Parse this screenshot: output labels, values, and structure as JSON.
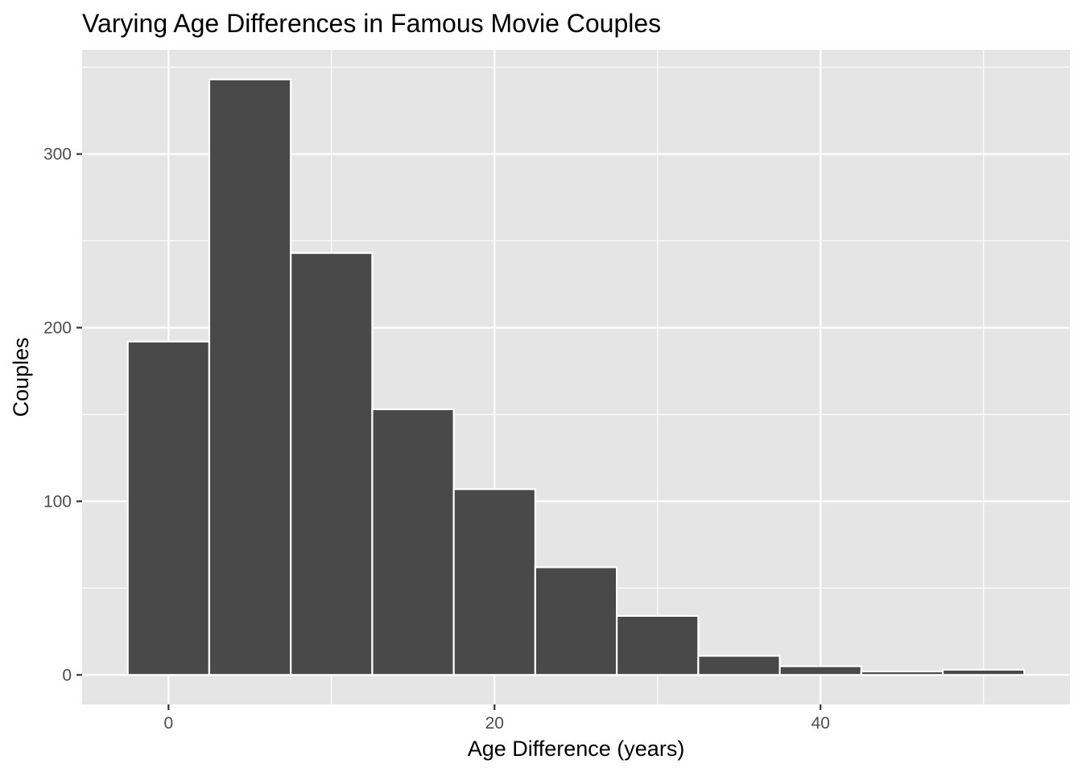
{
  "chart_data": {
    "type": "bar",
    "title": "Varying Age Differences in Famous Movie Couples",
    "xlabel": "Age Difference (years)",
    "ylabel": "Couples",
    "bin_width": 5,
    "bins": [
      {
        "x_start": -2.5,
        "x_end": 2.5,
        "count": 192
      },
      {
        "x_start": 2.5,
        "x_end": 7.5,
        "count": 343
      },
      {
        "x_start": 7.5,
        "x_end": 12.5,
        "count": 243
      },
      {
        "x_start": 12.5,
        "x_end": 17.5,
        "count": 153
      },
      {
        "x_start": 17.5,
        "x_end": 22.5,
        "count": 107
      },
      {
        "x_start": 22.5,
        "x_end": 27.5,
        "count": 62
      },
      {
        "x_start": 27.5,
        "x_end": 32.5,
        "count": 34
      },
      {
        "x_start": 32.5,
        "x_end": 37.5,
        "count": 11
      },
      {
        "x_start": 37.5,
        "x_end": 42.5,
        "count": 5
      },
      {
        "x_start": 42.5,
        "x_end": 47.5,
        "count": 2
      },
      {
        "x_start": 47.5,
        "x_end": 52.5,
        "count": 3
      }
    ],
    "xlim": [
      -5.3,
      55.3
    ],
    "ylim": [
      -17,
      360
    ],
    "x_ticks": [
      0,
      20,
      40
    ],
    "x_tick_labels": [
      "0",
      "20",
      "40"
    ],
    "x_minor_grid": [
      10,
      30,
      50
    ],
    "y_ticks": [
      0,
      100,
      200,
      300
    ],
    "y_tick_labels": [
      "0",
      "100",
      "200",
      "300"
    ],
    "y_minor_grid": [
      50,
      150,
      250,
      350
    ],
    "grid": true,
    "colors": {
      "panel_background": "#e5e5e5",
      "grid_line": "#ffffff",
      "bar_fill": "#494949",
      "bar_outline": "#ffffff",
      "tick_color": "#333333",
      "tick_label": "#4d4d4d"
    }
  }
}
